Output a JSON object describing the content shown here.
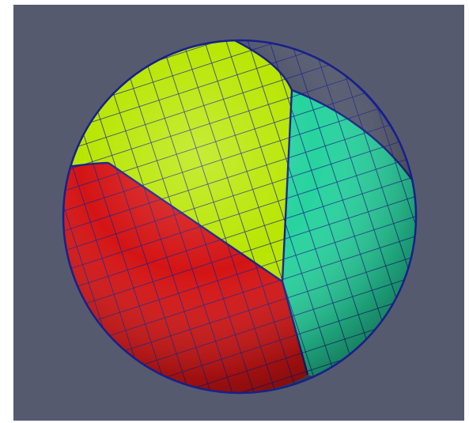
{
  "viewport": {
    "background_color": "#555a6f"
  },
  "sphere": {
    "mesh_type": "quadrilateral surface mesh",
    "edge_color": "#17208a",
    "patches": [
      {
        "name": "yellow-green-patch",
        "color": "#b8e600"
      },
      {
        "name": "teal-patch",
        "color": "#27d39e"
      },
      {
        "name": "red-patch",
        "color": "#d41414"
      },
      {
        "name": "blue-patch",
        "color": "#1a1ec9"
      }
    ]
  }
}
